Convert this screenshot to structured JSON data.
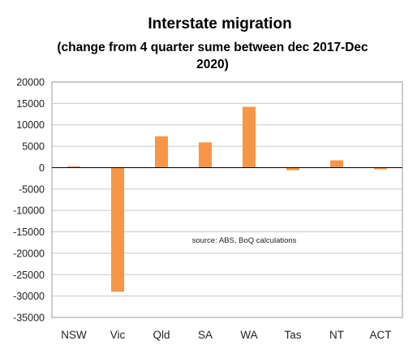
{
  "chart_data": {
    "type": "bar",
    "title": "Interstate migration",
    "subtitle_lines": [
      "(change from 4 quarter sume between dec 2017-Dec",
      "2020)"
    ],
    "categories": [
      "NSW",
      "Vic",
      "Qld",
      "SA",
      "WA",
      "Tas",
      "NT",
      "ACT"
    ],
    "values": [
      300,
      -29000,
      7300,
      5900,
      14200,
      -600,
      1700,
      -400
    ],
    "yticks": [
      "20000",
      "15000",
      "10000",
      "5000",
      "0",
      "-5000",
      "-10000",
      "-15000",
      "-20000",
      "-25000",
      "-30000",
      "-35000"
    ],
    "ylim": [
      -35000,
      20000
    ],
    "grid": true,
    "annotation": "source:  ABS, BoQ calculations",
    "colors": {
      "bar": "#F79646",
      "grid": "#C8C8C8",
      "axis": "#000000",
      "frame": "#9A9A9A"
    }
  }
}
